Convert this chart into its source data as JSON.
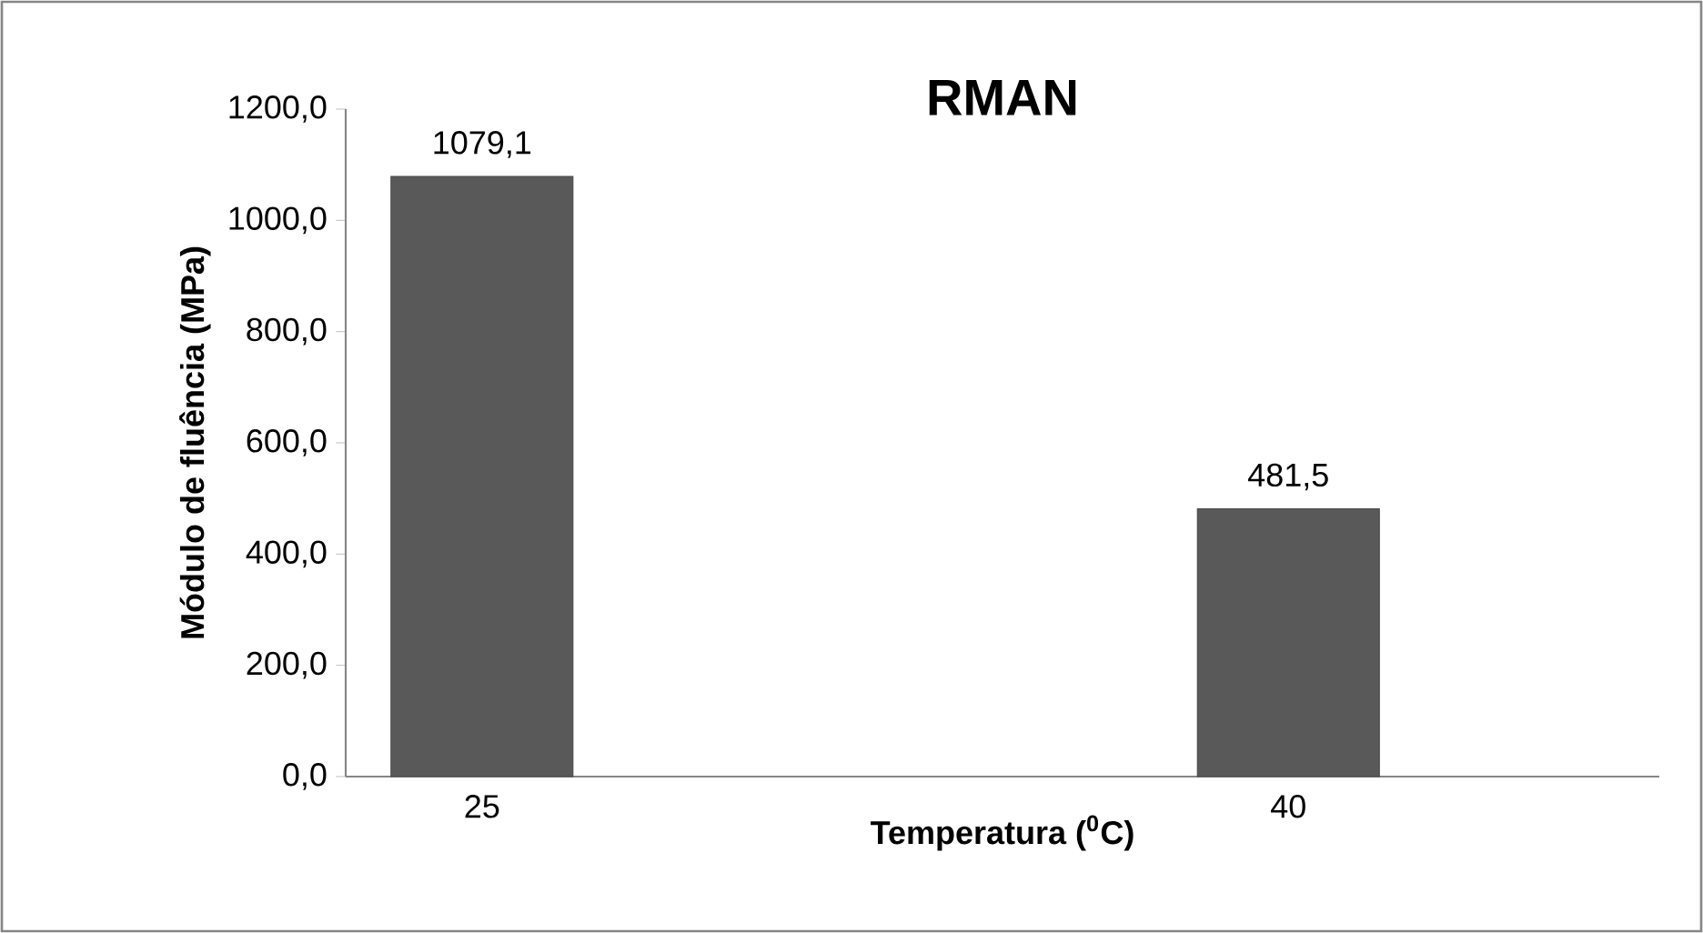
{
  "chart_data": {
    "type": "bar",
    "title": "RMAN",
    "xlabel": "Temperatura ($^{0}$C)",
    "ylabel": "Módulo de fluência (MPa)",
    "categories": [
      "25",
      "40"
    ],
    "values": [
      1079.1,
      481.5
    ],
    "value_labels": [
      "1079,1",
      "481,5"
    ],
    "color": "#595959",
    "ylim": [
      0,
      1200
    ],
    "yticks": [
      {
        "value": 0,
        "label": "0,0"
      },
      {
        "value": 200,
        "label": "200,0"
      },
      {
        "value": 400,
        "label": "400,0"
      },
      {
        "value": 600,
        "label": "600,0"
      },
      {
        "value": 800,
        "label": "800,0"
      },
      {
        "value": 1000,
        "label": "1000,0"
      },
      {
        "value": 1200,
        "label": "1200,0"
      }
    ],
    "grid": false
  }
}
